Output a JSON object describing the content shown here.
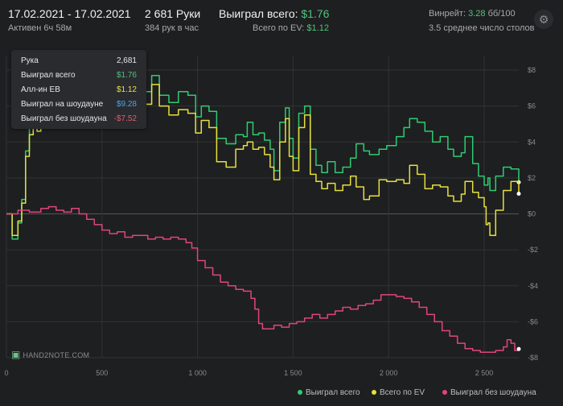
{
  "header": {
    "date_range": "17.02.2021 - 17.02.2021",
    "active": "Активен 6ч 58м",
    "hands": "2 681 Руки",
    "hands_per_hour": "384 рук в час",
    "won_total_label": "Выиграл всего:",
    "won_total_value": "$1.76",
    "ev_total_label": "Всего по EV:",
    "ev_total_value": "$1.12",
    "winrate_label": "Винрейт:",
    "winrate_value": "3.28",
    "winrate_unit": "бб/100",
    "tables": "3.5 среднее число столов"
  },
  "tooltip": {
    "rows": [
      {
        "label": "Рука",
        "value": "2,681",
        "color": "#e6e6e6"
      },
      {
        "label": "Выиграл всего",
        "value": "$1.76",
        "color": "#4fc37a"
      },
      {
        "label": "Алл-ин EB",
        "value": "$1.12",
        "color": "#e8e04a"
      },
      {
        "label": "Выиграл на шоудауне",
        "value": "$9.28",
        "color": "#4aa3e8"
      },
      {
        "label": "Выиграл без шоудауна",
        "value": "-$7.52",
        "color": "#e25c6a"
      }
    ]
  },
  "logo": "HAND2NOTE.COM",
  "legend": {
    "items": [
      {
        "label": "Выиграл всего",
        "color": "#2ecc71"
      },
      {
        "label": "Всего по EV",
        "color": "#e6e03a"
      },
      {
        "label": "Выиграл без шоудауна",
        "color": "#e0457b"
      }
    ]
  },
  "chart_data": {
    "type": "line",
    "xlim": [
      0,
      2681
    ],
    "ylim": [
      -8,
      8
    ],
    "x_ticks": [
      0,
      500,
      1000,
      1500,
      2000,
      2500
    ],
    "x_tick_labels": [
      "0",
      "500",
      "1 000",
      "1 500",
      "2 000",
      "2 500"
    ],
    "y_ticks": [
      -8,
      -6,
      -4,
      -2,
      0,
      2,
      4,
      6,
      8
    ],
    "y_tick_labels": [
      "-$8",
      "-$6",
      "-$4",
      "-$2",
      "$0",
      "$2",
      "$4",
      "$6",
      "$8"
    ],
    "grid": true,
    "legend_position": "bottom-right",
    "series": [
      {
        "name": "Выиграл всего",
        "color": "#2ecc71",
        "points": [
          [
            0,
            0
          ],
          [
            30,
            -1.4
          ],
          [
            60,
            -0.5
          ],
          [
            80,
            0.8
          ],
          [
            100,
            3.5
          ],
          [
            120,
            4.8
          ],
          [
            140,
            5.6
          ],
          [
            160,
            6.0
          ],
          [
            180,
            6.8
          ],
          [
            200,
            7.0
          ],
          [
            230,
            6.7
          ],
          [
            260,
            5.8
          ],
          [
            300,
            6.2
          ],
          [
            340,
            6.9
          ],
          [
            380,
            6.7
          ],
          [
            420,
            6.4
          ],
          [
            460,
            6.6
          ],
          [
            500,
            6.8
          ],
          [
            560,
            6.5
          ],
          [
            600,
            7.1
          ],
          [
            640,
            6.9
          ],
          [
            680,
            7.2
          ],
          [
            720,
            6.8
          ],
          [
            760,
            7.7
          ],
          [
            800,
            6.6
          ],
          [
            850,
            6.2
          ],
          [
            900,
            6.8
          ],
          [
            950,
            6.6
          ],
          [
            990,
            5.4
          ],
          [
            1020,
            6.0
          ],
          [
            1060,
            5.7
          ],
          [
            1100,
            4.2
          ],
          [
            1150,
            3.9
          ],
          [
            1200,
            4.4
          ],
          [
            1240,
            4.3
          ],
          [
            1260,
            5.1
          ],
          [
            1290,
            4.4
          ],
          [
            1320,
            4.5
          ],
          [
            1350,
            4.1
          ],
          [
            1380,
            3.6
          ],
          [
            1400,
            2.4
          ],
          [
            1430,
            5.1
          ],
          [
            1460,
            5.9
          ],
          [
            1480,
            4.2
          ],
          [
            1500,
            3.1
          ],
          [
            1530,
            5.6
          ],
          [
            1560,
            6.0
          ],
          [
            1590,
            3.6
          ],
          [
            1620,
            2.7
          ],
          [
            1650,
            2.3
          ],
          [
            1680,
            2.9
          ],
          [
            1720,
            2.3
          ],
          [
            1760,
            2.6
          ],
          [
            1800,
            3.1
          ],
          [
            1830,
            3.9
          ],
          [
            1870,
            3.5
          ],
          [
            1900,
            3.3
          ],
          [
            1950,
            3.6
          ],
          [
            1990,
            3.8
          ],
          [
            2040,
            4.3
          ],
          [
            2080,
            4.8
          ],
          [
            2110,
            5.3
          ],
          [
            2150,
            5.1
          ],
          [
            2190,
            4.6
          ],
          [
            2230,
            4.0
          ],
          [
            2270,
            4.3
          ],
          [
            2310,
            3.6
          ],
          [
            2340,
            3.2
          ],
          [
            2380,
            3.4
          ],
          [
            2400,
            4.3
          ],
          [
            2440,
            2.8
          ],
          [
            2470,
            2.1
          ],
          [
            2500,
            1.6
          ],
          [
            2520,
            2.0
          ],
          [
            2530,
            1.3
          ],
          [
            2560,
            2.1
          ],
          [
            2600,
            2.6
          ],
          [
            2640,
            2.5
          ],
          [
            2681,
            1.76
          ]
        ]
      },
      {
        "name": "Всего по EV",
        "color": "#e6e03a",
        "points": [
          [
            0,
            0
          ],
          [
            30,
            -1.2
          ],
          [
            60,
            -0.4
          ],
          [
            80,
            0.6
          ],
          [
            100,
            3.2
          ],
          [
            120,
            4.4
          ],
          [
            140,
            5.0
          ],
          [
            160,
            4.6
          ],
          [
            180,
            5.7
          ],
          [
            200,
            5.9
          ],
          [
            230,
            5.5
          ],
          [
            260,
            4.8
          ],
          [
            300,
            5.2
          ],
          [
            340,
            5.9
          ],
          [
            380,
            5.7
          ],
          [
            420,
            5.4
          ],
          [
            460,
            5.6
          ],
          [
            500,
            5.9
          ],
          [
            560,
            5.6
          ],
          [
            600,
            6.2
          ],
          [
            640,
            6.0
          ],
          [
            680,
            6.4
          ],
          [
            720,
            6.1
          ],
          [
            760,
            7.2
          ],
          [
            800,
            6.0
          ],
          [
            850,
            5.5
          ],
          [
            900,
            5.8
          ],
          [
            950,
            5.6
          ],
          [
            990,
            4.5
          ],
          [
            1020,
            5.2
          ],
          [
            1060,
            4.8
          ],
          [
            1100,
            2.9
          ],
          [
            1150,
            2.6
          ],
          [
            1200,
            3.6
          ],
          [
            1240,
            3.8
          ],
          [
            1260,
            4.0
          ],
          [
            1290,
            3.6
          ],
          [
            1320,
            3.7
          ],
          [
            1350,
            3.3
          ],
          [
            1380,
            2.6
          ],
          [
            1400,
            1.9
          ],
          [
            1430,
            4.0
          ],
          [
            1460,
            5.3
          ],
          [
            1480,
            3.2
          ],
          [
            1500,
            2.4
          ],
          [
            1530,
            4.8
          ],
          [
            1560,
            5.5
          ],
          [
            1590,
            2.2
          ],
          [
            1620,
            1.8
          ],
          [
            1650,
            1.4
          ],
          [
            1680,
            1.7
          ],
          [
            1720,
            1.3
          ],
          [
            1760,
            1.6
          ],
          [
            1800,
            2.1
          ],
          [
            1830,
            1.5
          ],
          [
            1870,
            0.8
          ],
          [
            1900,
            1.0
          ],
          [
            1950,
            1.9
          ],
          [
            1990,
            1.8
          ],
          [
            2040,
            1.9
          ],
          [
            2080,
            1.7
          ],
          [
            2110,
            2.7
          ],
          [
            2150,
            2.2
          ],
          [
            2190,
            1.4
          ],
          [
            2230,
            1.6
          ],
          [
            2270,
            1.5
          ],
          [
            2310,
            1.0
          ],
          [
            2340,
            0.7
          ],
          [
            2380,
            1.1
          ],
          [
            2400,
            1.8
          ],
          [
            2440,
            1.2
          ],
          [
            2470,
            0.9
          ],
          [
            2500,
            0.4
          ],
          [
            2510,
            -0.6
          ],
          [
            2520,
            -0.5
          ],
          [
            2530,
            -1.2
          ],
          [
            2560,
            0.2
          ],
          [
            2600,
            1.3
          ],
          [
            2640,
            1.8
          ],
          [
            2681,
            1.12
          ]
        ]
      },
      {
        "name": "Выиграл без шоудауна",
        "color": "#e0457b",
        "points": [
          [
            0,
            0
          ],
          [
            60,
            0.2
          ],
          [
            120,
            0.1
          ],
          [
            180,
            0.3
          ],
          [
            220,
            0.4
          ],
          [
            260,
            0.2
          ],
          [
            300,
            0.1
          ],
          [
            340,
            0.3
          ],
          [
            380,
            0.0
          ],
          [
            420,
            -0.3
          ],
          [
            460,
            -0.6
          ],
          [
            500,
            -0.9
          ],
          [
            540,
            -1.1
          ],
          [
            580,
            -1.0
          ],
          [
            620,
            -1.3
          ],
          [
            660,
            -1.2
          ],
          [
            700,
            -1.2
          ],
          [
            740,
            -1.4
          ],
          [
            780,
            -1.3
          ],
          [
            820,
            -1.4
          ],
          [
            860,
            -1.3
          ],
          [
            900,
            -1.4
          ],
          [
            940,
            -1.6
          ],
          [
            970,
            -1.9
          ],
          [
            1000,
            -2.6
          ],
          [
            1040,
            -3.0
          ],
          [
            1080,
            -3.4
          ],
          [
            1120,
            -3.8
          ],
          [
            1160,
            -4.0
          ],
          [
            1200,
            -4.2
          ],
          [
            1240,
            -4.3
          ],
          [
            1280,
            -4.7
          ],
          [
            1300,
            -5.3
          ],
          [
            1320,
            -6.1
          ],
          [
            1340,
            -6.4
          ],
          [
            1370,
            -6.4
          ],
          [
            1400,
            -6.2
          ],
          [
            1440,
            -6.3
          ],
          [
            1480,
            -6.1
          ],
          [
            1520,
            -6.0
          ],
          [
            1560,
            -5.8
          ],
          [
            1600,
            -5.6
          ],
          [
            1640,
            -5.8
          ],
          [
            1680,
            -5.6
          ],
          [
            1720,
            -5.4
          ],
          [
            1760,
            -5.2
          ],
          [
            1800,
            -5.3
          ],
          [
            1840,
            -5.1
          ],
          [
            1880,
            -5.0
          ],
          [
            1920,
            -4.8
          ],
          [
            1960,
            -4.5
          ],
          [
            2000,
            -4.5
          ],
          [
            2040,
            -4.6
          ],
          [
            2080,
            -4.7
          ],
          [
            2120,
            -4.9
          ],
          [
            2160,
            -5.2
          ],
          [
            2200,
            -5.6
          ],
          [
            2240,
            -6.0
          ],
          [
            2280,
            -6.5
          ],
          [
            2320,
            -6.8
          ],
          [
            2360,
            -7.2
          ],
          [
            2400,
            -7.5
          ],
          [
            2440,
            -7.6
          ],
          [
            2480,
            -7.7
          ],
          [
            2520,
            -7.7
          ],
          [
            2560,
            -7.6
          ],
          [
            2600,
            -7.4
          ],
          [
            2620,
            -7.0
          ],
          [
            2640,
            -7.2
          ],
          [
            2660,
            -7.6
          ],
          [
            2681,
            -7.52
          ]
        ]
      }
    ]
  }
}
